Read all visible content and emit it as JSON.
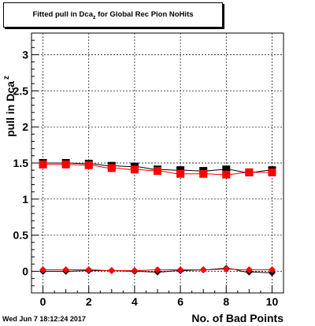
{
  "title": {
    "prefix": "Fitted pull in Dca",
    "subscript": "z",
    "suffix": " for Global Rec Pion NoHits"
  },
  "footer": {
    "date": "Wed Jun  7 18:12:24 2017"
  },
  "colors": {
    "series_black": "#000000",
    "series_red": "#ff0000",
    "grid": "#000000"
  },
  "chart_data": {
    "type": "scatter",
    "title": "Fitted pull in Dca_z for Global Rec Pion NoHits",
    "xlabel": "No. of Bad Points",
    "ylabel": "pull in Dca",
    "ylabel_subscript": "z",
    "xlim": [
      -0.5,
      10.5
    ],
    "ylim": [
      -0.3,
      3.3
    ],
    "x_ticks": [
      0,
      2,
      4,
      6,
      8,
      10
    ],
    "x_tick_labels": [
      "0",
      "2",
      "4",
      "6",
      "8",
      "10"
    ],
    "y_ticks": [
      0,
      0.5,
      1,
      1.5,
      2,
      2.5,
      3
    ],
    "y_tick_labels": [
      "0",
      "0.5",
      "1",
      "1.5",
      "2",
      "2.5",
      "3"
    ],
    "grid": true,
    "x": [
      0,
      1,
      2,
      3,
      4,
      5,
      6,
      7,
      8,
      9,
      10
    ],
    "series": [
      {
        "marker": "square",
        "color": "#000000",
        "values": [
          1.5,
          1.5,
          1.49,
          1.46,
          1.45,
          1.41,
          1.4,
          1.39,
          1.41,
          1.37,
          1.4
        ]
      },
      {
        "marker": "square",
        "color": "#ff0000",
        "values": [
          1.48,
          1.48,
          1.47,
          1.43,
          1.41,
          1.39,
          1.35,
          1.35,
          1.34,
          1.37,
          1.37
        ]
      },
      {
        "marker": "diamond",
        "color": "#000000",
        "values": [
          0.0,
          0.0,
          0.01,
          0.01,
          0.0,
          -0.01,
          0.01,
          0.02,
          0.04,
          -0.01,
          -0.02
        ]
      },
      {
        "marker": "diamond",
        "color": "#ff0000",
        "values": [
          0.02,
          0.02,
          0.02,
          0.01,
          0.01,
          0.02,
          0.02,
          0.02,
          0.03,
          0.02,
          0.02
        ]
      }
    ]
  }
}
